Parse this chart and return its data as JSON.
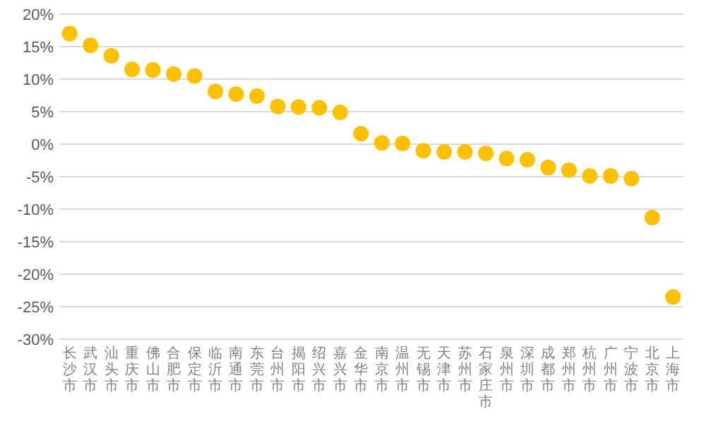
{
  "chart_data": {
    "type": "scatter",
    "categories": [
      "长沙市",
      "武汉市",
      "汕头市",
      "重庆市",
      "佛山市",
      "合肥市",
      "保定市",
      "临沂市",
      "南通市",
      "东莞市",
      "台州市",
      "揭阳市",
      "绍兴市",
      "嘉兴市",
      "金华市",
      "南京市",
      "温州市",
      "无锡市",
      "天津市",
      "苏州市",
      "石家庄市",
      "泉州市",
      "深圳市",
      "成都市",
      "郑州市",
      "杭州市",
      "广州市",
      "宁波市",
      "北京市",
      "上海市"
    ],
    "values": [
      17.0,
      15.2,
      13.6,
      11.5,
      11.4,
      10.8,
      10.5,
      8.1,
      7.7,
      7.4,
      5.8,
      5.7,
      5.6,
      4.9,
      1.6,
      0.2,
      0.1,
      -1.0,
      -1.2,
      -1.2,
      -1.4,
      -2.2,
      -2.4,
      -3.6,
      -4.0,
      -4.9,
      -4.9,
      -5.3,
      -11.3,
      -23.5
    ],
    "color": "#ffc000",
    "marker": "circle",
    "grid": "y",
    "ylim": [
      -30,
      20
    ],
    "yticks": [
      {
        "value": 20,
        "label": "20%"
      },
      {
        "value": 15,
        "label": "15%"
      },
      {
        "value": 10,
        "label": "10%"
      },
      {
        "value": 5,
        "label": "5%"
      },
      {
        "value": 0,
        "label": "0%"
      },
      {
        "value": -5,
        "label": "-5%"
      },
      {
        "value": -10,
        "label": "-10%"
      },
      {
        "value": -15,
        "label": "-15%"
      },
      {
        "value": -20,
        "label": "-20%"
      },
      {
        "value": -25,
        "label": "-25%"
      },
      {
        "value": -30,
        "label": "-30%"
      }
    ]
  }
}
